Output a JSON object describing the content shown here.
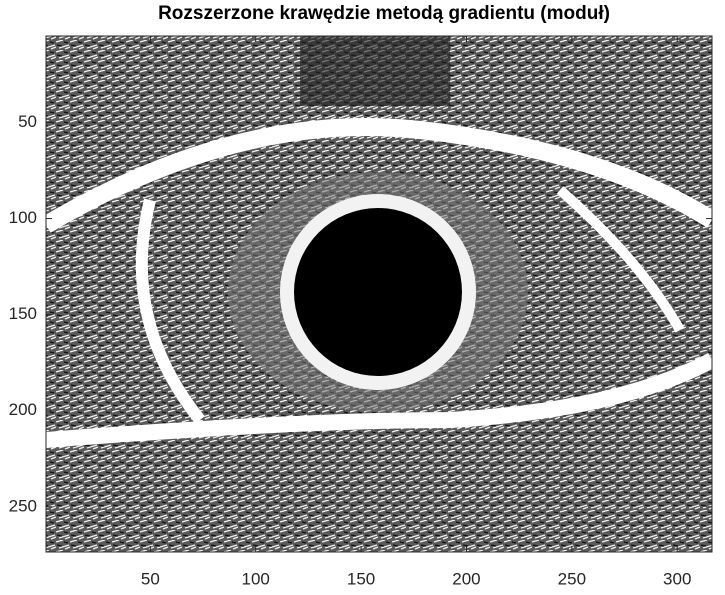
{
  "chart_data": {
    "type": "image",
    "title": "Rozszerzone krawędzie metodą gradientu (moduł)",
    "xlim": [
      0.5,
      316.5
    ],
    "ylim": [
      5,
      273.5
    ],
    "xticks": [
      50,
      100,
      150,
      200,
      250,
      300
    ],
    "yticks": [
      50,
      100,
      150,
      200,
      250
    ],
    "y_reversed": true
  }
}
